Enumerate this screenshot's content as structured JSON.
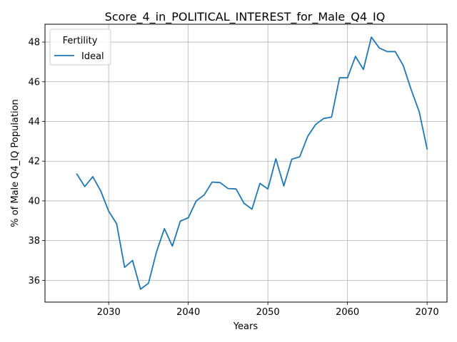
{
  "chart_data": {
    "type": "line",
    "title": "Score_4_in_POLITICAL_INTEREST_for_Male_Q4_IQ",
    "xlabel": "Years",
    "ylabel": "% of Male Q4_IQ Population",
    "xlim": [
      2022,
      2072.5
    ],
    "ylim": [
      34.9,
      48.9
    ],
    "xticks": [
      2030,
      2040,
      2050,
      2060,
      2070
    ],
    "yticks": [
      36,
      38,
      40,
      42,
      44,
      46,
      48
    ],
    "grid": true,
    "legend": {
      "title": "Fertility",
      "placement": "top-left"
    },
    "series": [
      {
        "name": "Ideal",
        "color": "#1f77b4",
        "x": [
          2026,
          2027,
          2028,
          2029,
          2030,
          2031,
          2032,
          2033,
          2034,
          2035,
          2036,
          2037,
          2038,
          2039,
          2040,
          2041,
          2042,
          2043,
          2044,
          2045,
          2046,
          2047,
          2048,
          2049,
          2050,
          2051,
          2052,
          2053,
          2054,
          2055,
          2056,
          2057,
          2058,
          2059,
          2060,
          2061,
          2062,
          2063,
          2064,
          2065,
          2066,
          2067,
          2068,
          2069,
          2070
        ],
        "y": [
          41.35,
          40.72,
          41.22,
          40.5,
          39.48,
          38.85,
          36.65,
          37.0,
          35.55,
          35.85,
          37.42,
          38.6,
          37.72,
          38.98,
          39.15,
          40.0,
          40.3,
          40.95,
          40.92,
          40.62,
          40.6,
          39.88,
          39.58,
          40.88,
          40.6,
          42.12,
          40.75,
          42.1,
          42.22,
          43.25,
          43.85,
          44.15,
          44.22,
          46.2,
          46.2,
          47.28,
          46.62,
          48.25,
          47.7,
          47.52,
          47.52,
          46.82,
          45.6,
          44.5,
          42.62
        ]
      }
    ]
  }
}
